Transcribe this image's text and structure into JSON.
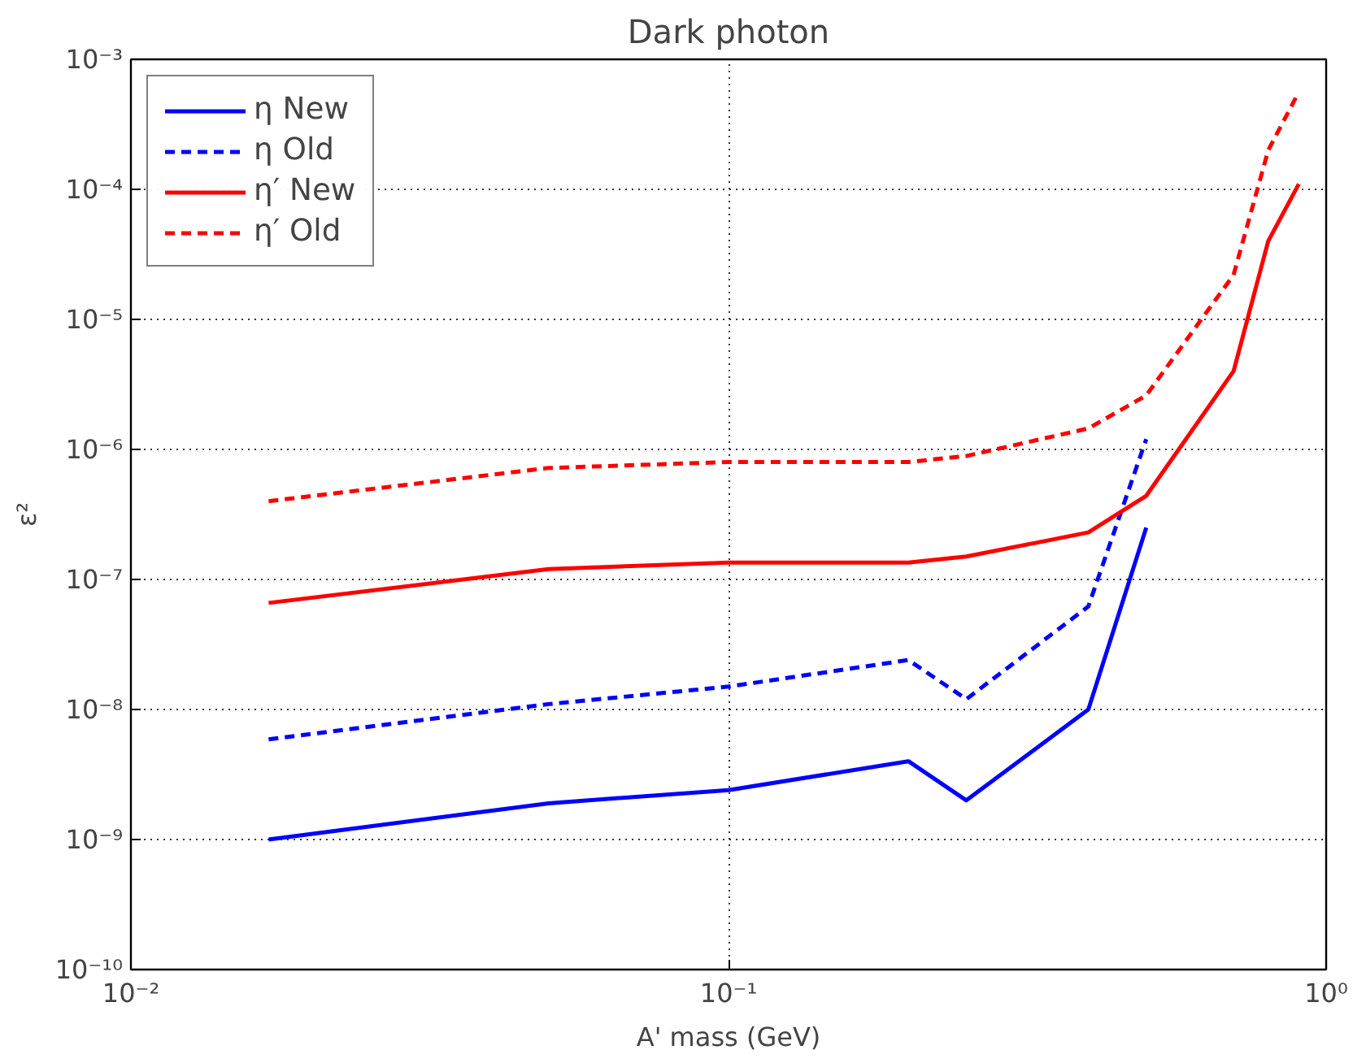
{
  "chart_data": {
    "type": "line",
    "title": "Dark photon",
    "xlabel": "A' mass (GeV)",
    "ylabel": "ε²",
    "log": "xy",
    "grid": true,
    "legend": "top left",
    "marker": "none",
    "xlim": [
      0.01,
      1
    ],
    "ylim": [
      1e-10,
      0.001
    ],
    "xticks": [
      {
        "value": 0.01,
        "label": "10⁻²"
      },
      {
        "value": 0.1,
        "label": "10⁻¹"
      },
      {
        "value": 1,
        "label": "10⁰"
      }
    ],
    "yticks": [
      {
        "value": 1e-10,
        "label": "10⁻¹⁰"
      },
      {
        "value": 1e-09,
        "label": "10⁻⁹"
      },
      {
        "value": 1e-08,
        "label": "10⁻⁸"
      },
      {
        "value": 1e-07,
        "label": "10⁻⁷"
      },
      {
        "value": 1e-06,
        "label": "10⁻⁶"
      },
      {
        "value": 1e-05,
        "label": "10⁻⁵"
      },
      {
        "value": 0.0001,
        "label": "10⁻⁴"
      },
      {
        "value": 0.001,
        "label": "10⁻³"
      }
    ],
    "series": [
      {
        "name": "η New",
        "color": "#0000ff",
        "line_style": "solid",
        "x": [
          0.017,
          0.05,
          0.1,
          0.2,
          0.25,
          0.4,
          0.5
        ],
        "values": [
          1e-09,
          1.9e-09,
          2.4e-09,
          4e-09,
          2e-09,
          1e-08,
          2.5e-07
        ]
      },
      {
        "name": "η Old",
        "color": "#0000ff",
        "line_style": "dashed",
        "x": [
          0.017,
          0.05,
          0.1,
          0.2,
          0.25,
          0.4,
          0.5
        ],
        "values": [
          5.9e-09,
          1.1e-08,
          1.5e-08,
          2.4e-08,
          1.2e-08,
          6.2e-08,
          1.2e-06
        ]
      },
      {
        "name": "η′ New",
        "color": "#ff0000",
        "line_style": "solid",
        "x": [
          0.017,
          0.05,
          0.1,
          0.2,
          0.25,
          0.4,
          0.5,
          0.7,
          0.8,
          0.9
        ],
        "values": [
          6.6e-08,
          1.2e-07,
          1.35e-07,
          1.35e-07,
          1.5e-07,
          2.3e-07,
          4.4e-07,
          4e-06,
          4e-05,
          0.00011
        ]
      },
      {
        "name": "η′ Old",
        "color": "#ff0000",
        "line_style": "dashed",
        "x": [
          0.017,
          0.05,
          0.1,
          0.2,
          0.25,
          0.4,
          0.5,
          0.7,
          0.8,
          0.9
        ],
        "values": [
          4e-07,
          7.2e-07,
          8e-07,
          8e-07,
          8.9e-07,
          1.45e-06,
          2.6e-06,
          2.2e-05,
          0.0002,
          0.00056
        ]
      }
    ]
  }
}
